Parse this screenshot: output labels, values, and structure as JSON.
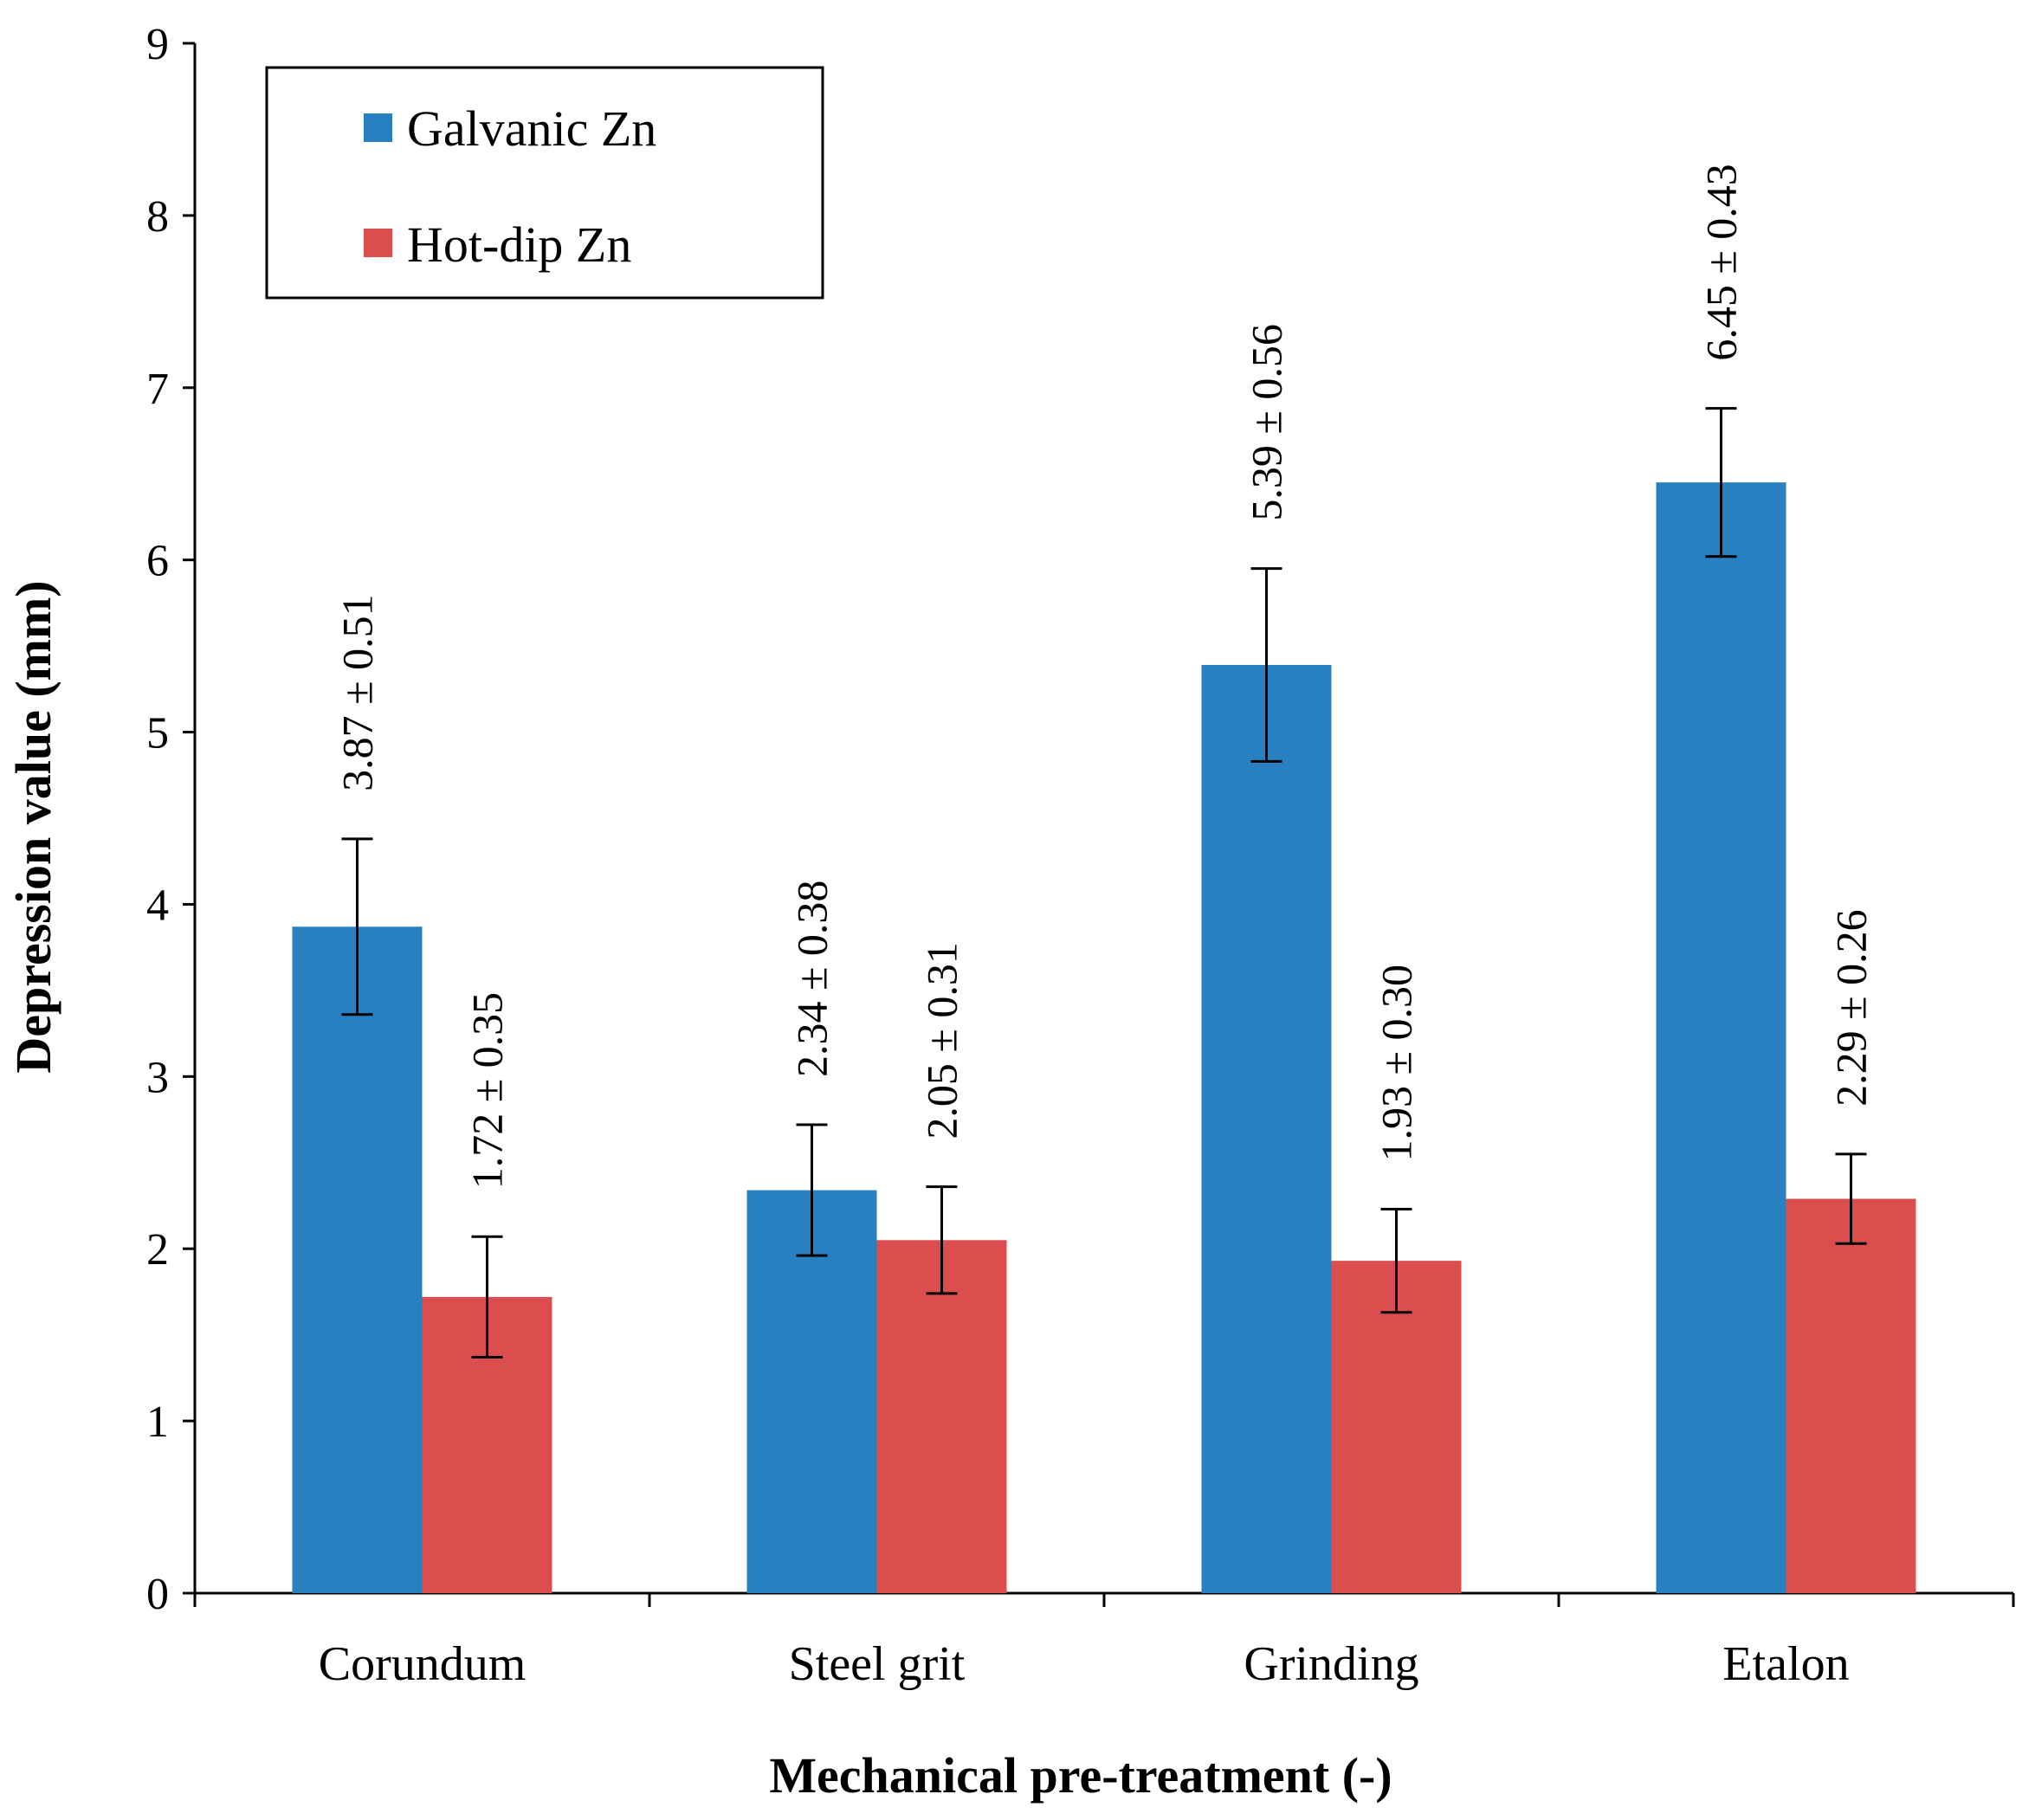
{
  "chart_data": {
    "type": "bar",
    "title": "",
    "xlabel": "Mechanical pre-treatment (-)",
    "ylabel": "Depression value (mm)",
    "ylim": [
      0,
      9
    ],
    "yticks": [
      "0",
      "1",
      "2",
      "3",
      "4",
      "5",
      "6",
      "7",
      "8",
      "9"
    ],
    "categories": [
      "Corundum",
      "Steel grit",
      "Grinding",
      "Etalon"
    ],
    "series": [
      {
        "name": "Galvanic Zn",
        "color": "#2980c1",
        "values": [
          3.87,
          2.34,
          5.39,
          6.45
        ],
        "errors": [
          0.51,
          0.38,
          0.56,
          0.43
        ],
        "labels": [
          "3.87 ± 0.51",
          "2.34 ± 0.38",
          "5.39 ± 0.56",
          "6.45 ± 0.43"
        ]
      },
      {
        "name": "Hot-dip Zn",
        "color": "#dc4e4e",
        "values": [
          1.72,
          2.05,
          1.93,
          2.29
        ],
        "errors": [
          0.35,
          0.31,
          0.3,
          0.26
        ],
        "labels": [
          "1.72 ± 0.35",
          "2.05 ± 0.31",
          "1.93 ± 0.30",
          "2.29 ± 0.26"
        ]
      }
    ],
    "legend_position": "top-left",
    "grid": false
  }
}
